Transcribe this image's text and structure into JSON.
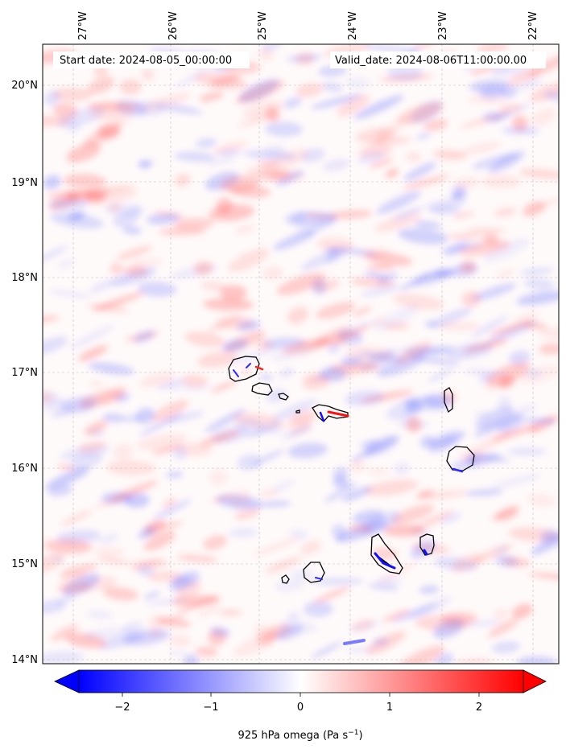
{
  "header": {
    "start_date": "Start date: 2024-08-05_00:00:00",
    "valid_date": "Valid_date: 2024-08-06T11:00:00.00"
  },
  "axes": {
    "lon_ticks": [
      "27°W",
      "26°W",
      "25°W",
      "24°W",
      "23°W",
      "22°W"
    ],
    "lat_ticks": [
      "20°N",
      "19°N",
      "18°N",
      "17°N",
      "16°N",
      "15°N",
      "14°N"
    ],
    "gridlines": true
  },
  "colorbar": {
    "ticks": [
      "−2",
      "−1",
      "0",
      "1",
      "2"
    ],
    "label": "925 hPa omega (Pa s",
    "label_sup": "−1",
    "label_end": ")",
    "colormap": "bwr",
    "min_color": "#0000ff",
    "mid_color": "#ffffff",
    "max_color": "#ff0000",
    "extend": "both"
  },
  "map": {
    "field": "925 hPa omega",
    "region": "Cabo Verde islands",
    "coastline_color": "#000000"
  }
}
